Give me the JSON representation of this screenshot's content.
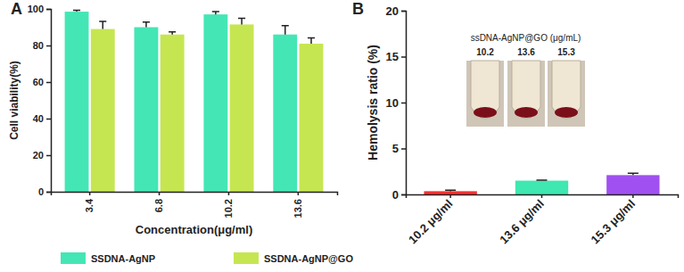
{
  "chart_data": [
    {
      "type": "bar",
      "panel_label": "A",
      "y_label": "Cell viability(%)",
      "x_label": "Concentration(μg/ml)",
      "categories": [
        "3.4",
        "6.8",
        "10.2",
        "13.6"
      ],
      "series": [
        {
          "name": "SSDNA-AgNP",
          "color": "#44e6b5",
          "values": [
            98.5,
            90,
            97,
            86
          ],
          "errors": [
            0.8,
            2.8,
            1.5,
            4.8
          ]
        },
        {
          "name": "SSDNA-AgNP@GO",
          "color": "#c6e651",
          "values": [
            89,
            86,
            91.5,
            81
          ],
          "errors": [
            4.2,
            1.5,
            3.4,
            3.2
          ]
        }
      ],
      "ylim": [
        0,
        100
      ],
      "yticks": [
        0,
        20,
        40,
        60,
        80,
        100
      ],
      "legend": "bottom",
      "grid": false
    },
    {
      "type": "bar",
      "panel_label": "B",
      "y_label": "Hemolysis ratio (%)",
      "categories": [
        "10.2 μg/ml",
        "13.6 μg/ml",
        "15.3 μg/ml"
      ],
      "values": [
        0.35,
        1.5,
        2.1
      ],
      "errors": [
        0.1,
        0.06,
        0.2
      ],
      "colors": [
        "#ff2d2d",
        "#3ee8b0",
        "#a050f0"
      ],
      "ylim": [
        0,
        20
      ],
      "yticks": [
        0,
        5,
        10,
        15,
        20
      ],
      "grid": false,
      "inset": {
        "title": "ssDNA-AgNP@GO (μg/mL)",
        "labels": [
          "10.2",
          "13.6",
          "15.3"
        ]
      }
    }
  ]
}
